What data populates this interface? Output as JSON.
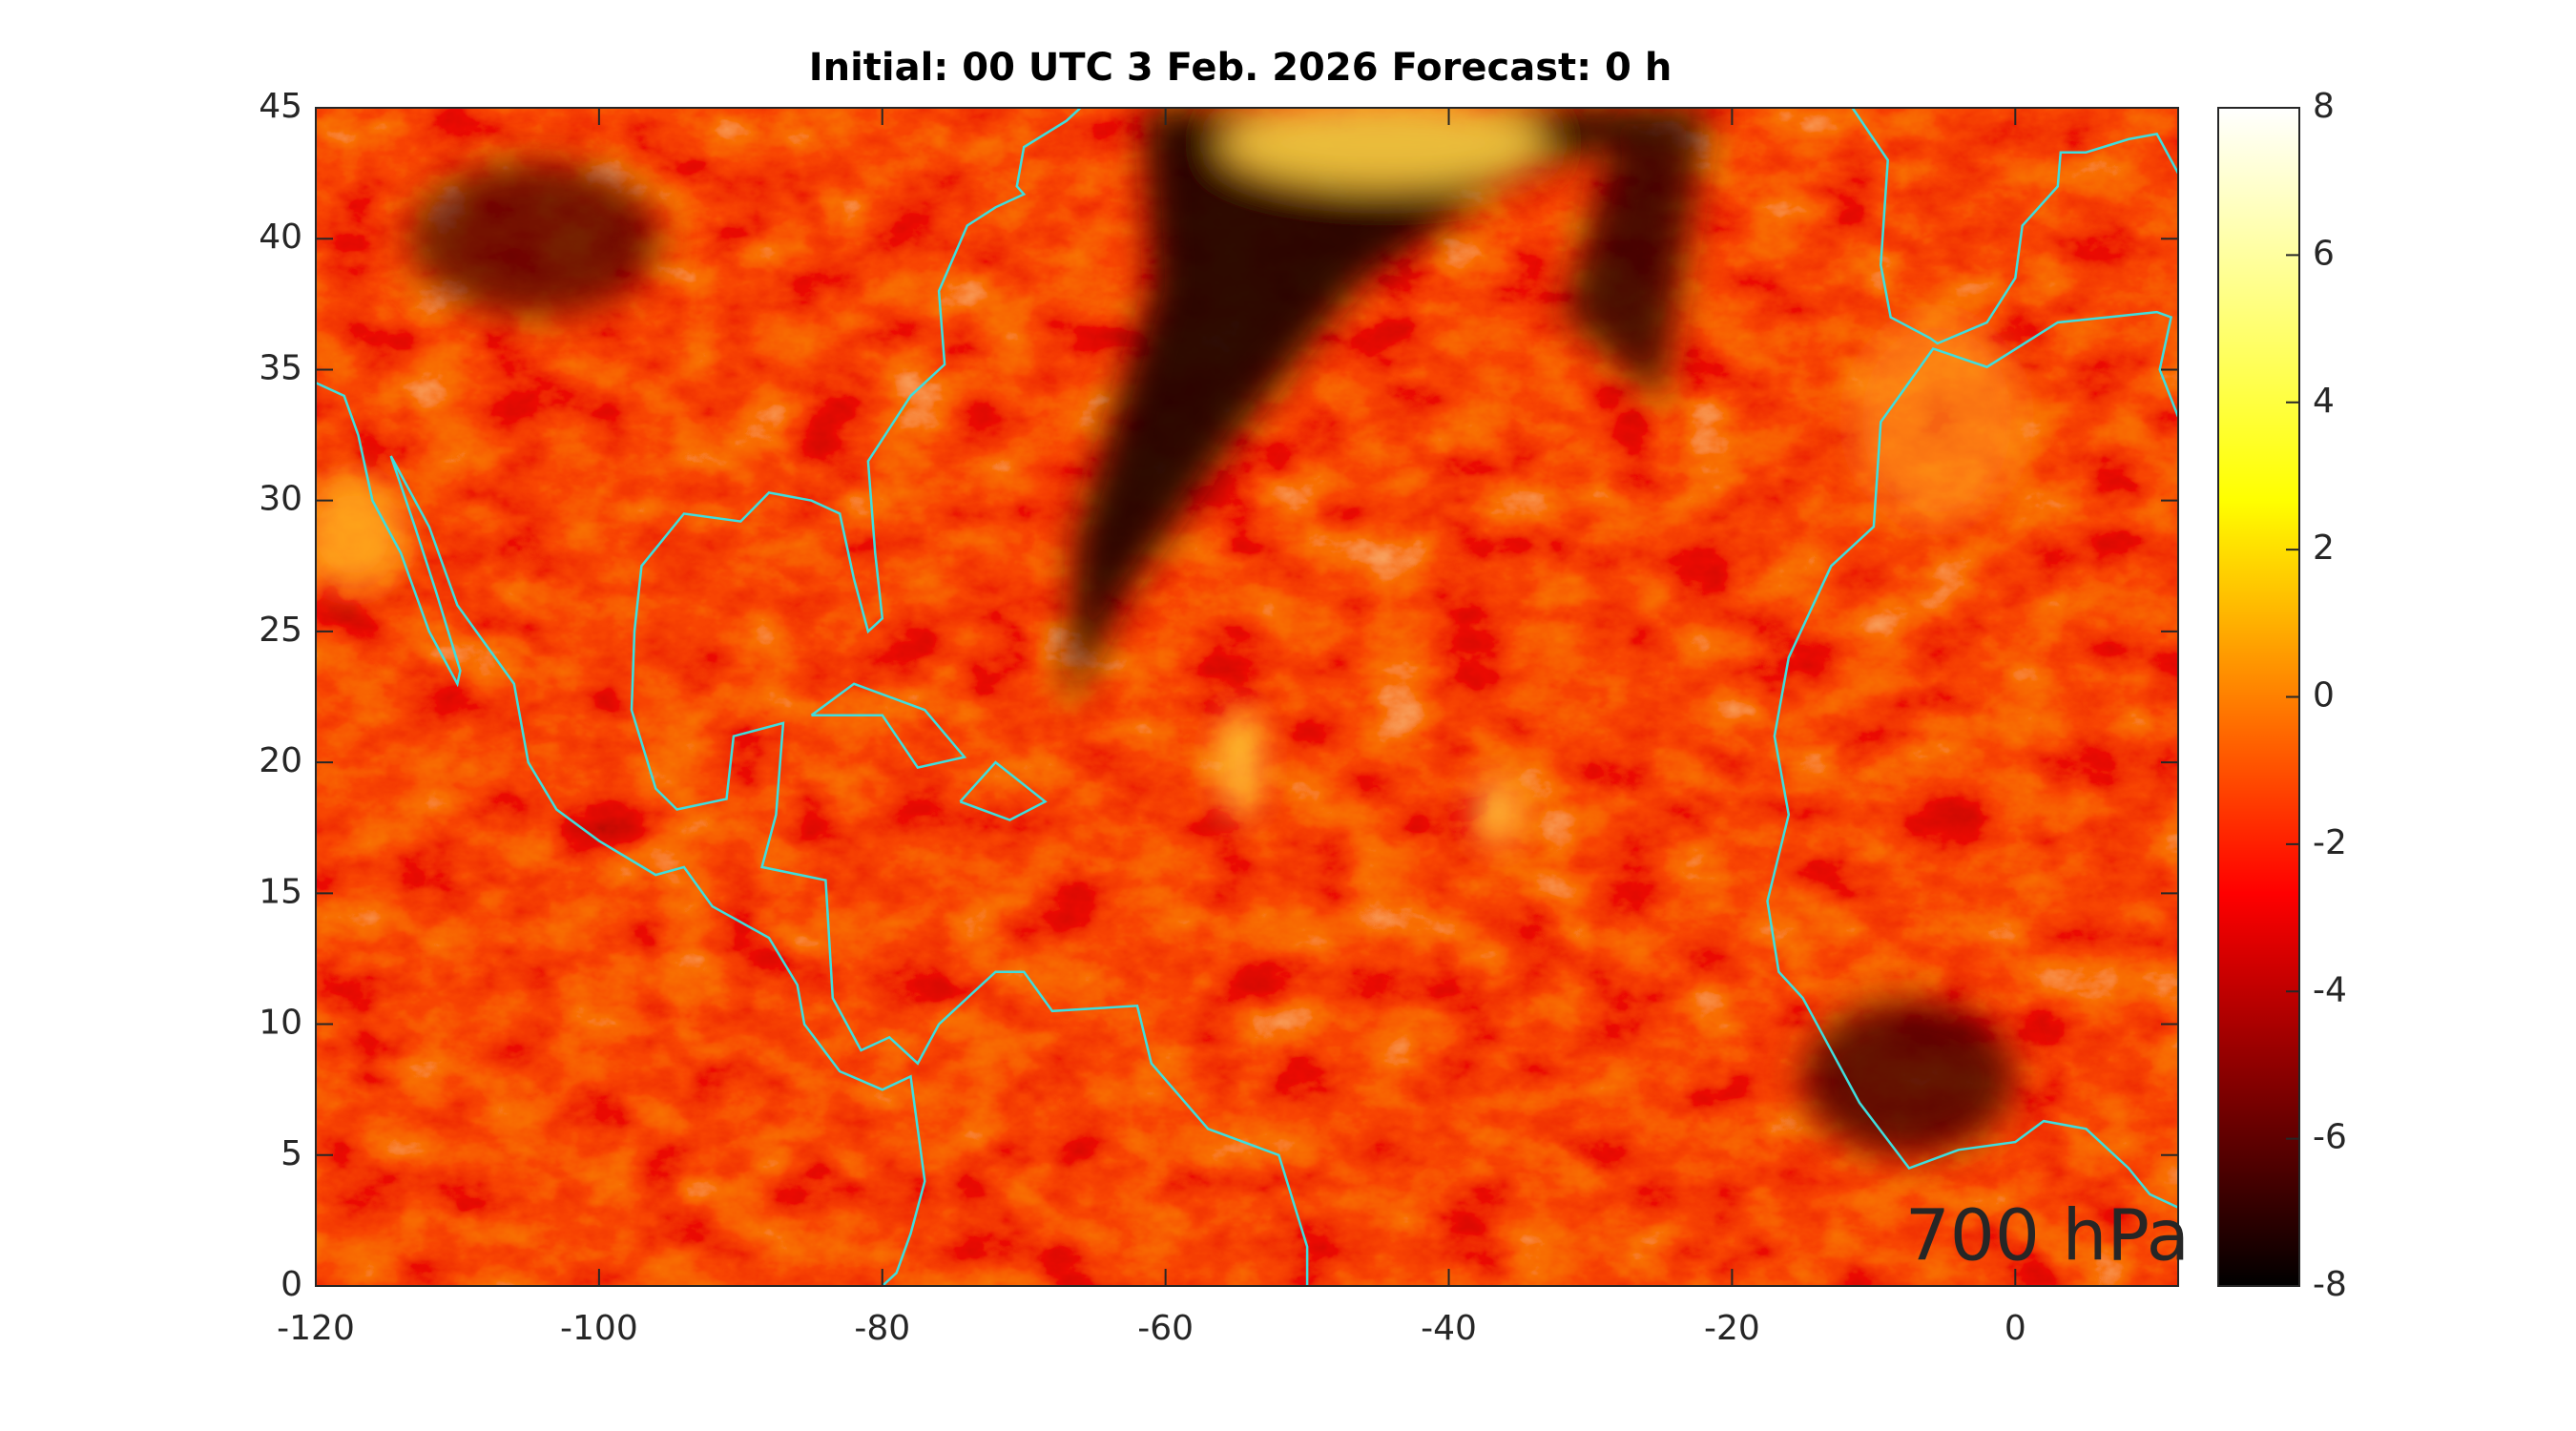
{
  "chart_data": {
    "type": "heatmap",
    "title": "Initial: 00 UTC 3 Feb. 2026 Forecast: 0 h",
    "annotation": "700 hPa",
    "annotation_color": "#00e600",
    "coastline_color": "#3fdede",
    "xlim": [
      -120,
      11.5
    ],
    "ylim": [
      0,
      45
    ],
    "xticks": [
      -120,
      -100,
      -80,
      -60,
      -40,
      -20,
      0
    ],
    "yticks": [
      0,
      5,
      10,
      15,
      20,
      25,
      30,
      35,
      40,
      45
    ],
    "colorbar": {
      "clim": [
        -8,
        8
      ],
      "ticks": [
        -8,
        -6,
        -4,
        -2,
        0,
        2,
        4,
        6,
        8
      ],
      "colormap": "hot"
    }
  }
}
